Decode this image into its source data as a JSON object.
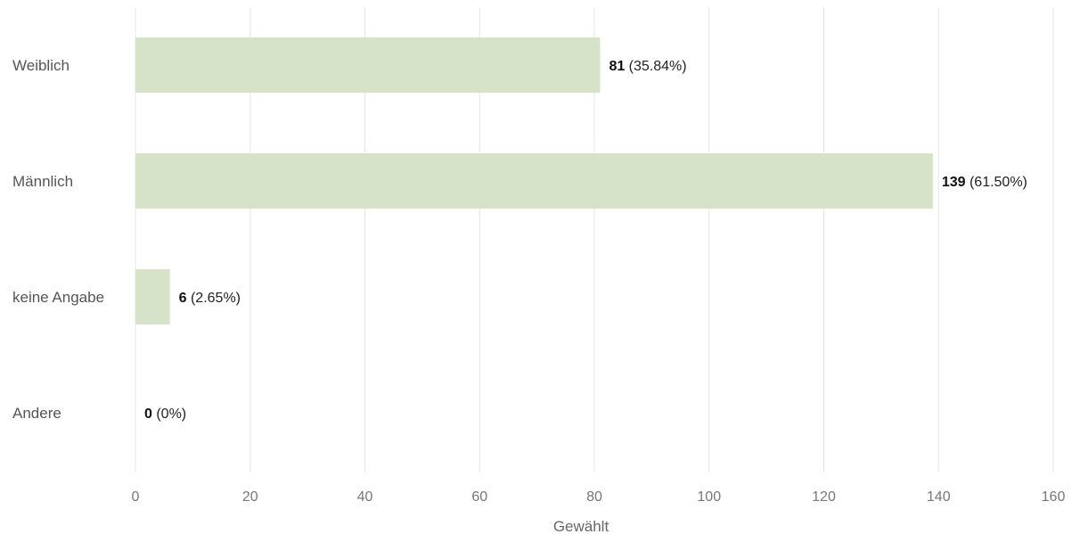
{
  "chart_data": {
    "type": "bar",
    "orientation": "horizontal",
    "categories": [
      "Weiblich",
      "Männlich",
      "keine Angabe",
      "Andere"
    ],
    "values": [
      81,
      139,
      6,
      0
    ],
    "value_labels": [
      {
        "count": "81",
        "percent": "(35.84%)"
      },
      {
        "count": "139",
        "percent": "(61.50%)"
      },
      {
        "count": "6",
        "percent": "(2.65%)"
      },
      {
        "count": "0",
        "percent": "(0%)"
      }
    ],
    "xlabel": "Gewählt",
    "xlim": [
      0,
      160
    ],
    "xticks": [
      0,
      20,
      40,
      60,
      80,
      100,
      120,
      140,
      160
    ],
    "grid": true,
    "bar_color": "#d6e3c9"
  }
}
